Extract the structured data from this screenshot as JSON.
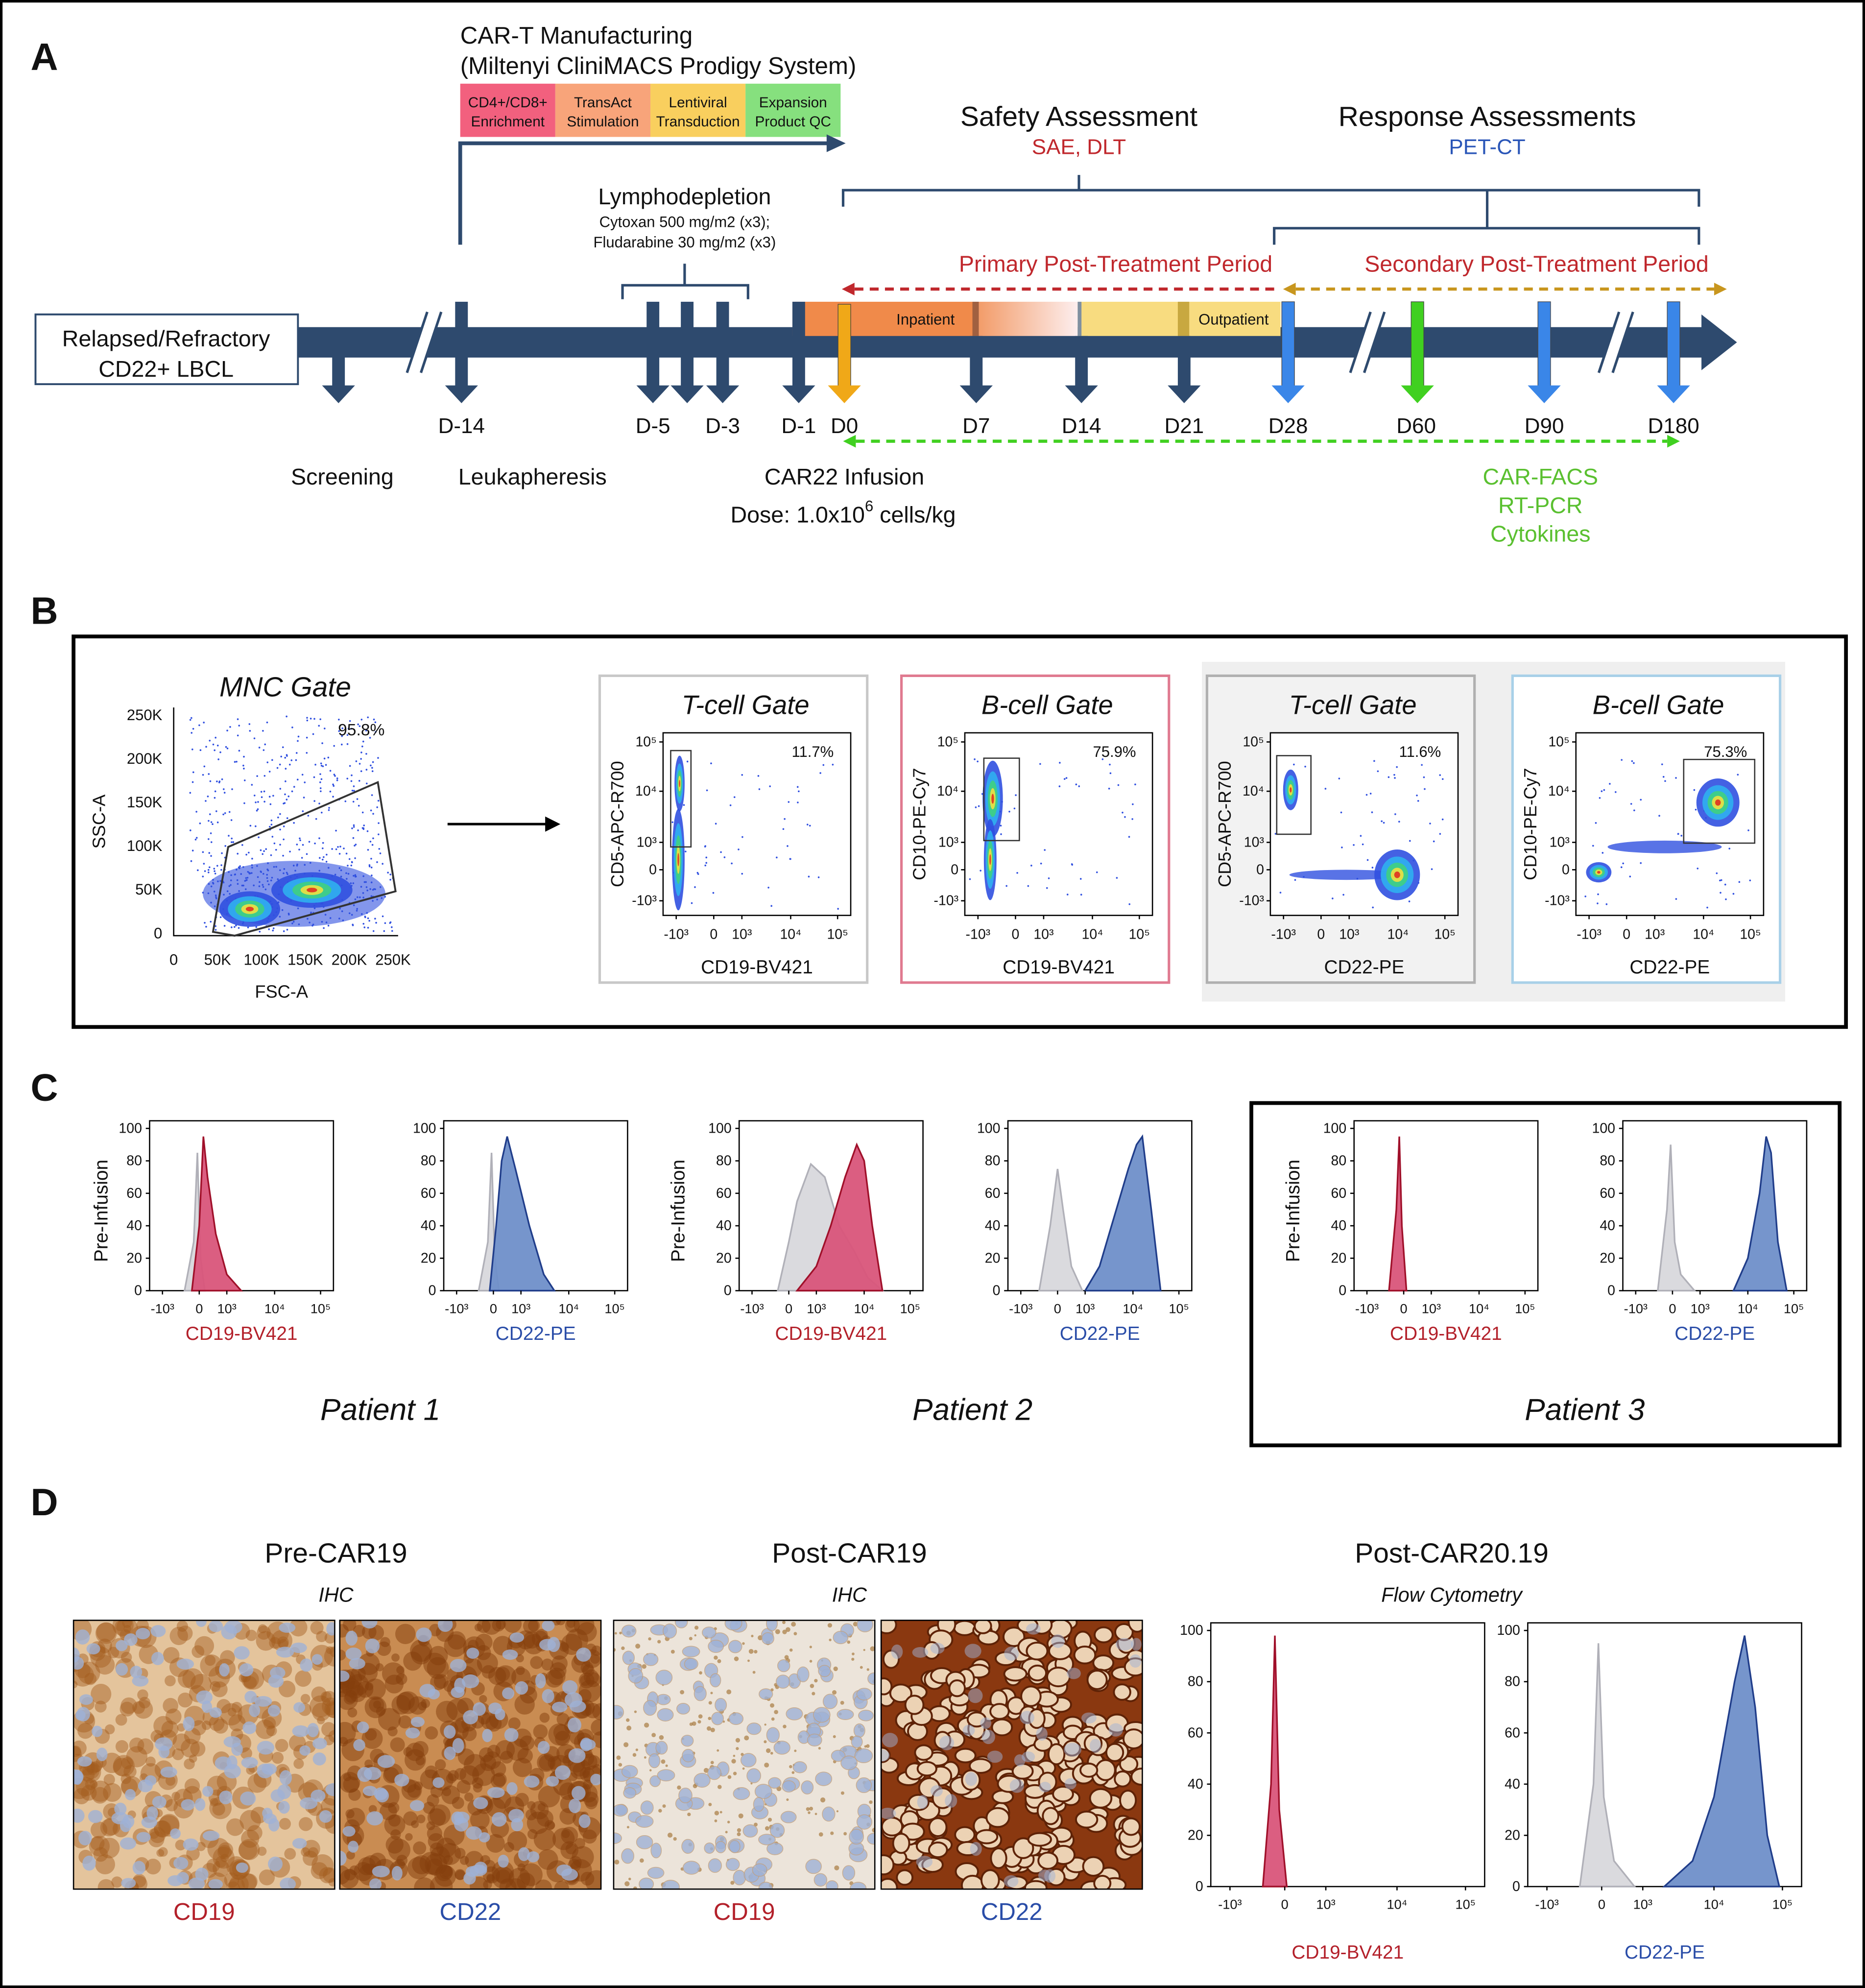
{
  "panel_a": {
    "label": "A",
    "manufacturing": {
      "title": "CAR-T Manufacturing",
      "subtitle": "(Miltenyi CliniMACS Prodigy System)",
      "steps": [
        {
          "lines": [
            "CD4+/CD8+",
            "Enrichment"
          ],
          "color": "#f2607e"
        },
        {
          "lines": [
            "TransAct",
            "Stimulation"
          ],
          "color": "#f8a47a"
        },
        {
          "lines": [
            "Lentiviral",
            "Transduction"
          ],
          "color": "#f9cf5e"
        },
        {
          "lines": [
            "Expansion",
            "Product QC"
          ],
          "color": "#86e07e"
        }
      ]
    },
    "safety": {
      "title": "Safety Assessment",
      "subtitle": "SAE, DLT"
    },
    "response": {
      "title": "Response Assessments",
      "subtitle": "PET-CT"
    },
    "lymphodepletion": {
      "title": "Lymphodepletion",
      "lines": [
        "Cytoxan 500 mg/m2 (x3);",
        "Fludarabine 30 mg/m2 (x3)"
      ]
    },
    "primary_period": "Primary Post-Treatment Period",
    "secondary_period": "Secondary Post-Treatment Period",
    "patient_box": [
      "Relapsed/Refractory",
      "CD22+ LBCL"
    ],
    "stay": {
      "inpatient": "Inpatient",
      "outpatient": "Outpatient"
    },
    "days": [
      "D-14",
      "D-5",
      "D-3",
      "D-1",
      "D0",
      "D7",
      "D14",
      "D21",
      "D28",
      "D60",
      "D90",
      "D180"
    ],
    "events": {
      "screening": "Screening",
      "leukapheresis": "Leukapheresis",
      "infusion": "CAR22 Infusion",
      "dose": {
        "text": "Dose: 1.0x10",
        "superscript": "6",
        "suffix": " cells/kg"
      }
    },
    "correlatives": [
      "CAR-FACS",
      "RT-PCR",
      "Cytokines"
    ]
  },
  "panel_b": {
    "label": "B",
    "mnc": {
      "title": "MNC Gate",
      "percent": "95.8%",
      "x_label": "FSC-A",
      "y_label": "SSC-A",
      "xticks": [
        "0",
        "50K",
        "100K",
        "150K",
        "200K",
        "250K"
      ],
      "yticks": [
        "250K",
        "200K",
        "150K",
        "100K",
        "50K",
        "0"
      ]
    },
    "gates": [
      {
        "title": "T-cell Gate",
        "percent": "11.7%",
        "x_label": "CD19-BV421",
        "y_label": "CD5-APC-R700",
        "border": "#c8c8c8"
      },
      {
        "title": "B-cell Gate",
        "percent": "75.9%",
        "x_label": "CD19-BV421",
        "y_label": "CD10-PE-Cy7",
        "border": "#e07a90"
      },
      {
        "title": "T-cell Gate",
        "percent": "11.6%",
        "x_label": "CD22-PE",
        "y_label": "CD5-APC-R700",
        "border": "#b0b0b0"
      },
      {
        "title": "B-cell Gate",
        "percent": "75.3%",
        "x_label": "CD22-PE",
        "y_label": "CD10-PE-Cy7",
        "border": "#a8d0e8"
      }
    ]
  },
  "hist_axes": {
    "ylim": [
      0,
      100
    ],
    "yticks": [
      0,
      20,
      40,
      60,
      80,
      100
    ],
    "xticks": [
      {
        "value": -1000,
        "label": "-10³"
      },
      0,
      {
        "value": 1000,
        "label": "10³"
      },
      {
        "value": 10000,
        "label": "10⁴"
      },
      {
        "value": 100000,
        "label": "10⁵"
      }
    ]
  },
  "panel_c": {
    "label": "C",
    "patients": [
      {
        "name": "Patient 1",
        "y_label": "Pre-Infusion",
        "plots": [
          {
            "x_label": "CD19-BV421",
            "label_color": "#b3202a",
            "series": [
              {
                "color": "#d8d8dc",
                "edge": "#b0b0b8",
                "x": [
                  -400,
                  -150,
                  -50,
                  50,
                  200
                ],
                "values": [
                  0,
                  30,
                  85,
                  20,
                  0
                ]
              },
              {
                "color": "#d9557a",
                "edge": "#a0102a",
                "x": [
                  -200,
                  0,
                  150,
                  300,
                  600,
                  1000,
                  2000
                ],
                "values": [
                  0,
                  40,
                  95,
                  70,
                  35,
                  10,
                  0
                ]
              }
            ]
          },
          {
            "x_label": "CD22-PE",
            "label_color": "#2a4da8",
            "series": [
              {
                "color": "#d8d8dc",
                "edge": "#b0b0b8",
                "x": [
                  -400,
                  -150,
                  -50,
                  50,
                  200
                ],
                "values": [
                  0,
                  30,
                  85,
                  20,
                  0
                ]
              },
              {
                "color": "#6f8fc9",
                "edge": "#203d8a",
                "x": [
                  -100,
                  100,
                  300,
                  500,
                  800,
                  1500,
                  3000,
                  5000
                ],
                "values": [
                  0,
                  40,
                  80,
                  95,
                  75,
                  40,
                  10,
                  0
                ]
              }
            ]
          }
        ]
      },
      {
        "name": "Patient 2",
        "y_label": "Pre-Infusion",
        "plots": [
          {
            "x_label": "CD19-BV421",
            "label_color": "#b3202a",
            "series": [
              {
                "color": "#d8d8dc",
                "edge": "#b0b0b8",
                "x": [
                  -300,
                  0,
                  300,
                  800,
                  1500,
                  3000,
                  6000,
                  12000,
                  25000
                ],
                "values": [
                  0,
                  30,
                  55,
                  78,
                  70,
                  40,
                  25,
                  8,
                  0
                ]
              },
              {
                "color": "#d9557a",
                "edge": "#a0102a",
                "x": [
                  300,
                  1000,
                  2000,
                  4000,
                  7000,
                  10000,
                  15000,
                  25000
                ],
                "values": [
                  0,
                  15,
                  40,
                  70,
                  90,
                  80,
                  40,
                  0
                ]
              }
            ]
          },
          {
            "x_label": "CD22-PE",
            "label_color": "#2a4da8",
            "series": [
              {
                "color": "#d8d8dc",
                "edge": "#b0b0b8",
                "x": [
                  -500,
                  -200,
                  0,
                  200,
                  500,
                  900
                ],
                "values": [
                  0,
                  40,
                  75,
                  50,
                  15,
                  0
                ]
              },
              {
                "color": "#6f8fc9",
                "edge": "#203d8a",
                "x": [
                  1000,
                  2000,
                  4000,
                  8000,
                  12000,
                  16000,
                  25000,
                  40000
                ],
                "values": [
                  0,
                  15,
                  45,
                  75,
                  90,
                  95,
                  50,
                  0
                ]
              }
            ]
          }
        ]
      },
      {
        "name": "Patient 3",
        "y_label": "Pre-Infusion",
        "plots": [
          {
            "x_label": "CD19-BV421",
            "label_color": "#b3202a",
            "series": [
              {
                "color": "#d9557a",
                "edge": "#a0102a",
                "x": [
                  -400,
                  -200,
                  -120,
                  -50,
                  100
                ],
                "values": [
                  0,
                  50,
                  95,
                  40,
                  0
                ]
              }
            ]
          },
          {
            "x_label": "CD22-PE",
            "label_color": "#2a4da8",
            "series": [
              {
                "color": "#d8d8dc",
                "edge": "#b0b0b8",
                "x": [
                  -400,
                  -150,
                  -50,
                  80,
                  300,
                  800
                ],
                "values": [
                  0,
                  50,
                  90,
                  30,
                  10,
                  0
                ]
              },
              {
                "color": "#6f8fc9",
                "edge": "#203d8a",
                "x": [
                  5000,
                  10000,
                  18000,
                  25000,
                  32000,
                  45000,
                  70000
                ],
                "values": [
                  0,
                  20,
                  60,
                  95,
                  85,
                  30,
                  0
                ]
              }
            ]
          }
        ]
      }
    ]
  },
  "panel_d": {
    "label": "D",
    "groups": [
      {
        "title": "Pre-CAR19",
        "method": "IHC",
        "stains": [
          {
            "name": "CD19",
            "color": "#b3202a"
          },
          {
            "name": "CD22",
            "color": "#2a4da8"
          }
        ]
      },
      {
        "title": "Post-CAR19",
        "method": "IHC",
        "stains": [
          {
            "name": "CD19",
            "color": "#b3202a"
          },
          {
            "name": "CD22",
            "color": "#2a4da8"
          }
        ]
      },
      {
        "title": "Post-CAR20.19",
        "method": "Flow Cytometry",
        "plots": [
          {
            "x_label": "CD19-BV421",
            "label_color": "#b3202a",
            "series": [
              {
                "color": "#d9557a",
                "edge": "#a0102a",
                "x": [
                  -400,
                  -250,
                  -180,
                  -100,
                  50
                ],
                "values": [
                  0,
                  40,
                  98,
                  30,
                  0
                ]
              }
            ]
          },
          {
            "x_label": "CD22-PE",
            "label_color": "#2a4da8",
            "series": [
              {
                "color": "#d8d8dc",
                "edge": "#b0b0b8",
                "x": [
                  -400,
                  -150,
                  -60,
                  50,
                  300,
                  800
                ],
                "values": [
                  0,
                  40,
                  95,
                  35,
                  10,
                  0
                ]
              },
              {
                "color": "#6f8fc9",
                "edge": "#203d8a",
                "x": [
                  2000,
                  5000,
                  10000,
                  20000,
                  28000,
                  40000,
                  60000,
                  90000
                ],
                "values": [
                  0,
                  10,
                  35,
                  80,
                  98,
                  70,
                  20,
                  0
                ]
              }
            ]
          }
        ]
      }
    ]
  }
}
